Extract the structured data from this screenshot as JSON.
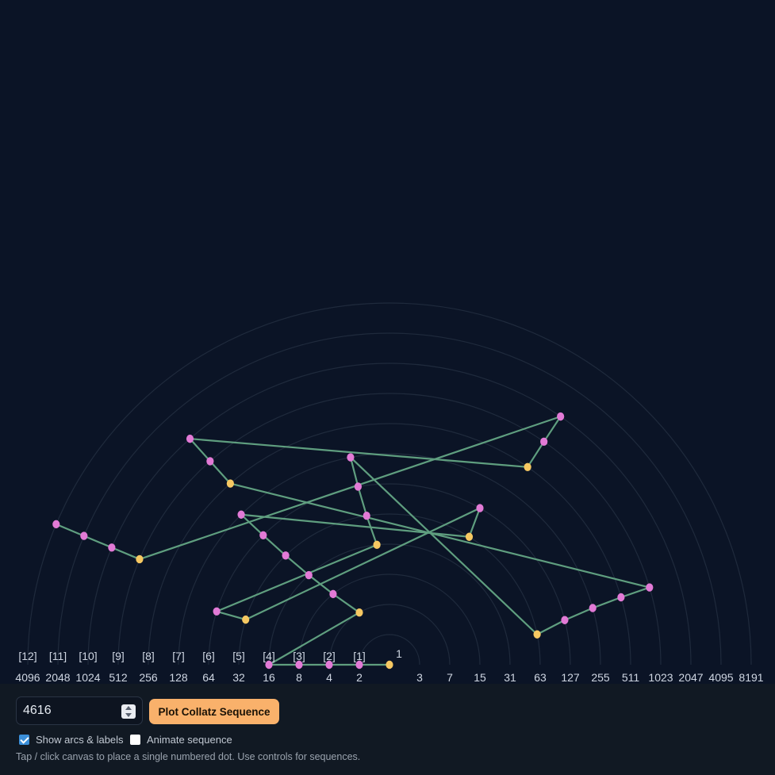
{
  "collatz": {
    "start": 4616,
    "sequence": [
      4616,
      2308,
      1154,
      577,
      1732,
      866,
      433,
      1300,
      650,
      325,
      976,
      488,
      244,
      122,
      61,
      184,
      92,
      46,
      23,
      70,
      35,
      106,
      53,
      160,
      80,
      40,
      20,
      10,
      5,
      16,
      8,
      4,
      2,
      1
    ],
    "colors": {
      "even": "#e27ad6",
      "odd": "#f6c862",
      "line": "#5f9e7f",
      "arc": "#1f2a3c",
      "background": "#0b1426"
    }
  },
  "axis": {
    "left_numbers": [
      "4096",
      "2048",
      "1024",
      "512",
      "256",
      "128",
      "64",
      "32",
      "16",
      "8",
      "4",
      "2"
    ],
    "right_numbers": [
      "3",
      "7",
      "15",
      "31",
      "63",
      "127",
      "255",
      "511",
      "1023",
      "2047",
      "4095",
      "8191"
    ],
    "level_labels": [
      "[12]",
      "[11]",
      "[10]",
      "[9]",
      "[8]",
      "[7]",
      "[6]",
      "[5]",
      "[4]",
      "[3]",
      "[2]",
      "[1]"
    ],
    "one_label": "1"
  },
  "controls": {
    "number_value": "4616",
    "plot_button_label": "Plot Collatz Sequence",
    "show_arcs_label": "Show arcs & labels",
    "show_arcs_checked": true,
    "animate_label": "Animate sequence",
    "animate_checked": false,
    "hint": "Tap / click canvas to place a single numbered dot. Use controls for sequences."
  }
}
